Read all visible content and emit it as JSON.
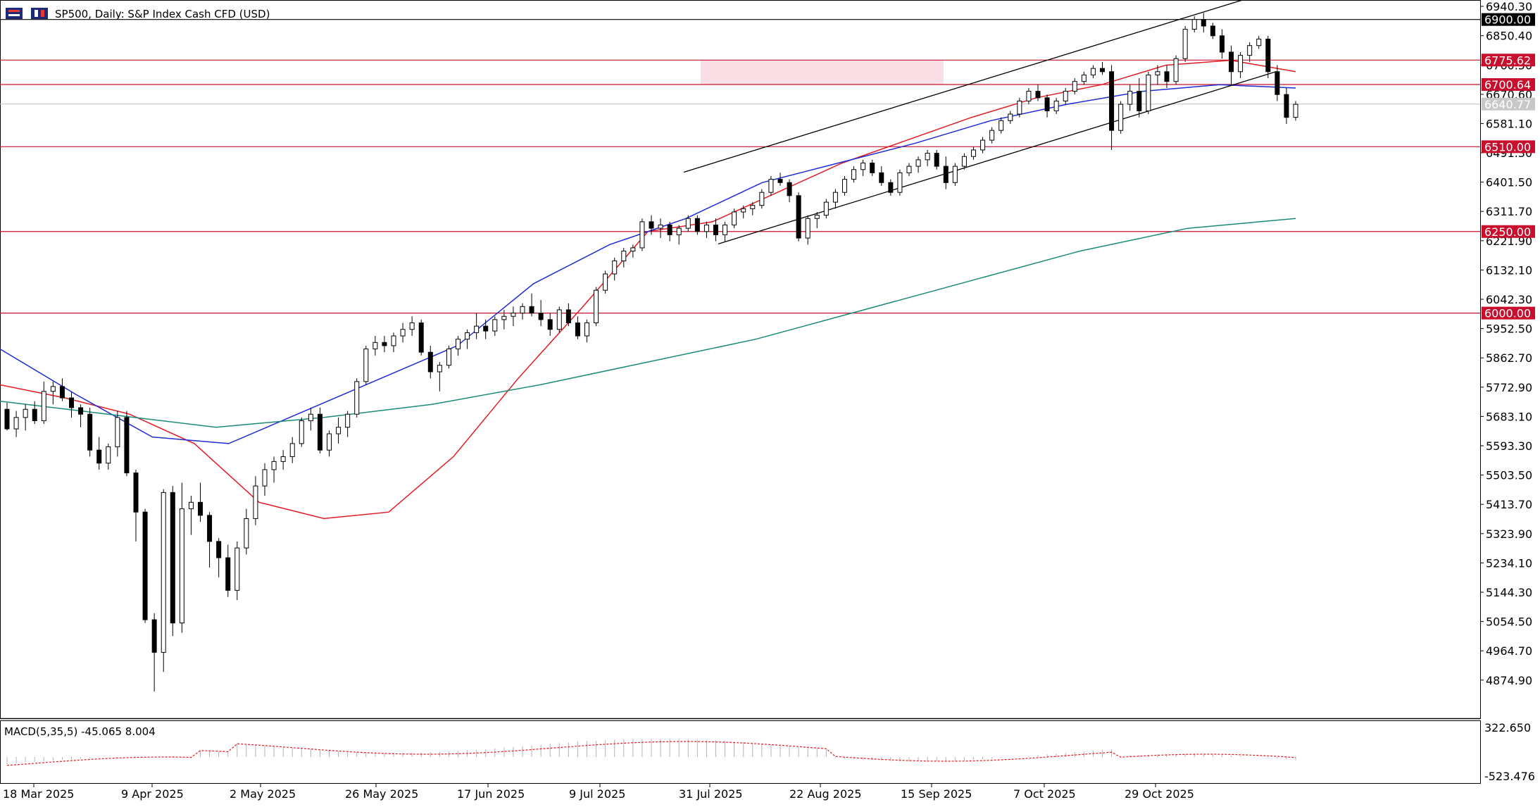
{
  "header": {
    "symbol": "SP500",
    "timeframe": "Daily",
    "description": "S&P Index Cash CFD (USD)",
    "title_text": "SP500, Daily:  S&P Index Cash CFD (USD)",
    "toolbar_icons": [
      "bar-chart-icon",
      "candle-chart-icon"
    ]
  },
  "price_axis": {
    "labels": [
      "6940.30",
      "6850.40",
      "6760.50",
      "6670.60",
      "6581.10",
      "6491.30",
      "6401.50",
      "6311.70",
      "6221.90",
      "6132.10",
      "6042.30",
      "5952.50",
      "5862.70",
      "5772.90",
      "5683.10",
      "5593.30",
      "5503.50",
      "5413.70",
      "5323.90",
      "5234.10",
      "5144.30",
      "5054.50",
      "4964.70",
      "4874.90"
    ]
  },
  "date_axis": {
    "labels": [
      "18 Mar 2025",
      "9 Apr 2025",
      "2 May 2025",
      "26 May 2025",
      "17 Jun 2025",
      "9 Jul 2025",
      "31 Jul 2025",
      "22 Aug 2025",
      "15 Sep 2025",
      "7 Oct 2025",
      "29 Oct 2025"
    ]
  },
  "macd": {
    "label": "MACD(5,35,5) -45.065 8.004",
    "axis_top": "322.650",
    "axis_bottom": "-523.476"
  },
  "colors": {
    "bull_candle": "#ffffff",
    "bear_candle": "#000000",
    "ema_fast": "#e31b23",
    "ema_mid": "#1f2ad6",
    "ema_slow": "#1b8a78",
    "level_line": "#c8102e",
    "resistance_zone": "#f9d7e0",
    "channel": "#000000",
    "macd_signal": "#e31b23",
    "macd_hist": "#b4b4b4"
  },
  "chart_data": {
    "type": "candlestick",
    "symbol": "SP500",
    "timeframe": "Daily",
    "y_range": [
      4830,
      6955
    ],
    "levels": [
      {
        "value": 6900.0,
        "label": "6900.00",
        "style": "black"
      },
      {
        "value": 6775.62,
        "label": "6775.62",
        "style": "red"
      },
      {
        "value": 6700.64,
        "label": "6700.64",
        "style": "red"
      },
      {
        "value": 6640.77,
        "label": "6640.77",
        "style": "current"
      },
      {
        "value": 6510.0,
        "label": "6510.00",
        "style": "red"
      },
      {
        "value": 6250.0,
        "label": "6250.00",
        "style": "red"
      },
      {
        "value": 6000.0,
        "label": "6000.00",
        "style": "red"
      }
    ],
    "resistance_zone": [
      6700.64,
      6775.62
    ],
    "channel": {
      "upper": [
        {
          "date": "2025-07-24",
          "value": 6432
        },
        {
          "date": "2025-11-04",
          "value": 6960
        }
      ],
      "lower": [
        {
          "date": "2025-08-01",
          "value": 6212
        },
        {
          "date": "2025-11-04",
          "value": 6740
        }
      ]
    },
    "moving_averages": [
      {
        "name": "EMA fast",
        "color": "#e31b23",
        "values": [
          5780,
          5740,
          5690,
          5600,
          5420,
          5370,
          5390,
          5560,
          5800,
          6020,
          6250,
          6280,
          6370,
          6460,
          6530,
          6600,
          6660,
          6700,
          6760,
          6775,
          6740
        ]
      },
      {
        "name": "EMA mid",
        "color": "#1f2ad6",
        "values": [
          5890,
          5750,
          5620,
          5600,
          5700,
          5800,
          5900,
          6090,
          6210,
          6290,
          6400,
          6460,
          6520,
          6590,
          6640,
          6680,
          6700,
          6690
        ]
      },
      {
        "name": "EMA slow",
        "color": "#1b8a78",
        "values": [
          5730,
          5690,
          5650,
          5680,
          5720,
          5780,
          5850,
          5920,
          6010,
          6100,
          6190,
          6260,
          6290
        ]
      }
    ],
    "candles": [
      [
        5705,
        5725,
        5640,
        5645
      ],
      [
        5645,
        5700,
        5620,
        5680
      ],
      [
        5680,
        5720,
        5640,
        5705
      ],
      [
        5705,
        5730,
        5660,
        5670
      ],
      [
        5670,
        5790,
        5660,
        5760
      ],
      [
        5760,
        5790,
        5720,
        5775
      ],
      [
        5775,
        5800,
        5730,
        5740
      ],
      [
        5740,
        5760,
        5680,
        5710
      ],
      [
        5710,
        5720,
        5650,
        5690
      ],
      [
        5690,
        5710,
        5560,
        5580
      ],
      [
        5580,
        5620,
        5520,
        5540
      ],
      [
        5540,
        5600,
        5520,
        5590
      ],
      [
        5590,
        5700,
        5560,
        5680
      ],
      [
        5680,
        5700,
        5500,
        5510
      ],
      [
        5510,
        5520,
        5300,
        5390
      ],
      [
        5390,
        5400,
        5050,
        5060
      ],
      [
        5060,
        5080,
        4840,
        4960
      ],
      [
        4960,
        5460,
        4900,
        5450
      ],
      [
        5450,
        5470,
        5010,
        5050
      ],
      [
        5050,
        5480,
        5020,
        5400
      ],
      [
        5400,
        5440,
        5320,
        5420
      ],
      [
        5420,
        5480,
        5360,
        5380
      ],
      [
        5380,
        5390,
        5220,
        5300
      ],
      [
        5300,
        5310,
        5190,
        5250
      ],
      [
        5250,
        5290,
        5130,
        5150
      ],
      [
        5150,
        5300,
        5120,
        5280
      ],
      [
        5280,
        5400,
        5260,
        5370
      ],
      [
        5370,
        5500,
        5350,
        5470
      ],
      [
        5470,
        5540,
        5440,
        5520
      ],
      [
        5520,
        5560,
        5480,
        5545
      ],
      [
        5545,
        5580,
        5520,
        5560
      ],
      [
        5560,
        5620,
        5540,
        5600
      ],
      [
        5600,
        5680,
        5590,
        5670
      ],
      [
        5670,
        5710,
        5640,
        5690
      ],
      [
        5690,
        5710,
        5570,
        5580
      ],
      [
        5580,
        5640,
        5560,
        5630
      ],
      [
        5630,
        5680,
        5600,
        5650
      ],
      [
        5650,
        5700,
        5620,
        5690
      ],
      [
        5690,
        5800,
        5680,
        5790
      ],
      [
        5790,
        5900,
        5780,
        5890
      ],
      [
        5890,
        5930,
        5870,
        5910
      ],
      [
        5910,
        5930,
        5880,
        5900
      ],
      [
        5900,
        5940,
        5880,
        5930
      ],
      [
        5930,
        5970,
        5910,
        5950
      ],
      [
        5950,
        5990,
        5930,
        5970
      ],
      [
        5970,
        5980,
        5870,
        5880
      ],
      [
        5880,
        5900,
        5800,
        5820
      ],
      [
        5820,
        5850,
        5760,
        5840
      ],
      [
        5840,
        5900,
        5830,
        5890
      ],
      [
        5890,
        5930,
        5870,
        5920
      ],
      [
        5920,
        5950,
        5890,
        5940
      ],
      [
        5940,
        6000,
        5920,
        5960
      ],
      [
        5960,
        5980,
        5920,
        5945
      ],
      [
        5945,
        5990,
        5930,
        5980
      ],
      [
        5980,
        6010,
        5950,
        5990
      ],
      [
        5990,
        6020,
        5960,
        6000
      ],
      [
        6000,
        6030,
        5980,
        6020
      ],
      [
        6020,
        6060,
        5990,
        6000
      ],
      [
        6000,
        6040,
        5960,
        5980
      ],
      [
        5980,
        6000,
        5930,
        5950
      ],
      [
        5950,
        6020,
        5940,
        6010
      ],
      [
        6010,
        6030,
        5960,
        5970
      ],
      [
        5970,
        5990,
        5920,
        5930
      ],
      [
        5930,
        5980,
        5910,
        5970
      ],
      [
        5970,
        6080,
        5960,
        6070
      ],
      [
        6070,
        6130,
        6060,
        6120
      ],
      [
        6120,
        6170,
        6100,
        6160
      ],
      [
        6160,
        6200,
        6140,
        6190
      ],
      [
        6190,
        6210,
        6170,
        6200
      ],
      [
        6200,
        6290,
        6190,
        6280
      ],
      [
        6280,
        6300,
        6240,
        6260
      ],
      [
        6260,
        6290,
        6230,
        6270
      ],
      [
        6270,
        6280,
        6220,
        6240
      ],
      [
        6240,
        6270,
        6210,
        6260
      ],
      [
        6260,
        6300,
        6250,
        6290
      ],
      [
        6290,
        6300,
        6240,
        6250
      ],
      [
        6250,
        6280,
        6230,
        6270
      ],
      [
        6270,
        6290,
        6220,
        6240
      ],
      [
        6240,
        6280,
        6220,
        6270
      ],
      [
        6270,
        6320,
        6260,
        6310
      ],
      [
        6310,
        6330,
        6290,
        6320
      ],
      [
        6320,
        6340,
        6300,
        6330
      ],
      [
        6330,
        6380,
        6320,
        6370
      ],
      [
        6370,
        6420,
        6360,
        6410
      ],
      [
        6410,
        6430,
        6390,
        6400
      ],
      [
        6400,
        6410,
        6340,
        6360
      ],
      [
        6360,
        6370,
        6220,
        6230
      ],
      [
        6230,
        6300,
        6210,
        6290
      ],
      [
        6290,
        6310,
        6260,
        6300
      ],
      [
        6300,
        6350,
        6290,
        6340
      ],
      [
        6340,
        6380,
        6320,
        6370
      ],
      [
        6370,
        6420,
        6360,
        6410
      ],
      [
        6410,
        6450,
        6400,
        6440
      ],
      [
        6440,
        6470,
        6420,
        6460
      ],
      [
        6460,
        6470,
        6420,
        6430
      ],
      [
        6430,
        6450,
        6390,
        6400
      ],
      [
        6400,
        6410,
        6360,
        6370
      ],
      [
        6370,
        6440,
        6360,
        6430
      ],
      [
        6430,
        6460,
        6420,
        6450
      ],
      [
        6450,
        6480,
        6430,
        6470
      ],
      [
        6470,
        6500,
        6450,
        6490
      ],
      [
        6490,
        6500,
        6440,
        6450
      ],
      [
        6450,
        6480,
        6380,
        6400
      ],
      [
        6400,
        6460,
        6390,
        6450
      ],
      [
        6450,
        6490,
        6440,
        6480
      ],
      [
        6480,
        6510,
        6470,
        6500
      ],
      [
        6500,
        6540,
        6490,
        6530
      ],
      [
        6530,
        6570,
        6520,
        6560
      ],
      [
        6560,
        6600,
        6550,
        6590
      ],
      [
        6590,
        6620,
        6580,
        6610
      ],
      [
        6610,
        6660,
        6600,
        6650
      ],
      [
        6650,
        6690,
        6640,
        6680
      ],
      [
        6680,
        6700,
        6650,
        6660
      ],
      [
        6660,
        6670,
        6600,
        6620
      ],
      [
        6620,
        6660,
        6610,
        6650
      ],
      [
        6650,
        6690,
        6640,
        6680
      ],
      [
        6680,
        6720,
        6670,
        6710
      ],
      [
        6710,
        6740,
        6700,
        6730
      ],
      [
        6730,
        6760,
        6720,
        6750
      ],
      [
        6750,
        6770,
        6730,
        6740
      ],
      [
        6740,
        6760,
        6500,
        6560
      ],
      [
        6560,
        6650,
        6550,
        6640
      ],
      [
        6640,
        6700,
        6620,
        6680
      ],
      [
        6680,
        6720,
        6600,
        6620
      ],
      [
        6620,
        6740,
        6610,
        6730
      ],
      [
        6730,
        6760,
        6700,
        6740
      ],
      [
        6740,
        6760,
        6690,
        6710
      ],
      [
        6710,
        6790,
        6700,
        6780
      ],
      [
        6780,
        6880,
        6770,
        6870
      ],
      [
        6870,
        6910,
        6860,
        6900
      ],
      [
        6900,
        6920,
        6860,
        6880
      ],
      [
        6880,
        6890,
        6840,
        6850
      ],
      [
        6850,
        6870,
        6780,
        6800
      ],
      [
        6800,
        6820,
        6700,
        6740
      ],
      [
        6740,
        6800,
        6720,
        6790
      ],
      [
        6790,
        6830,
        6770,
        6820
      ],
      [
        6820,
        6850,
        6810,
        6840
      ],
      [
        6840,
        6850,
        6720,
        6740
      ],
      [
        6740,
        6760,
        6650,
        6670
      ],
      [
        6670,
        6690,
        6580,
        6600
      ],
      [
        6600,
        6650,
        6590,
        6640
      ]
    ]
  }
}
